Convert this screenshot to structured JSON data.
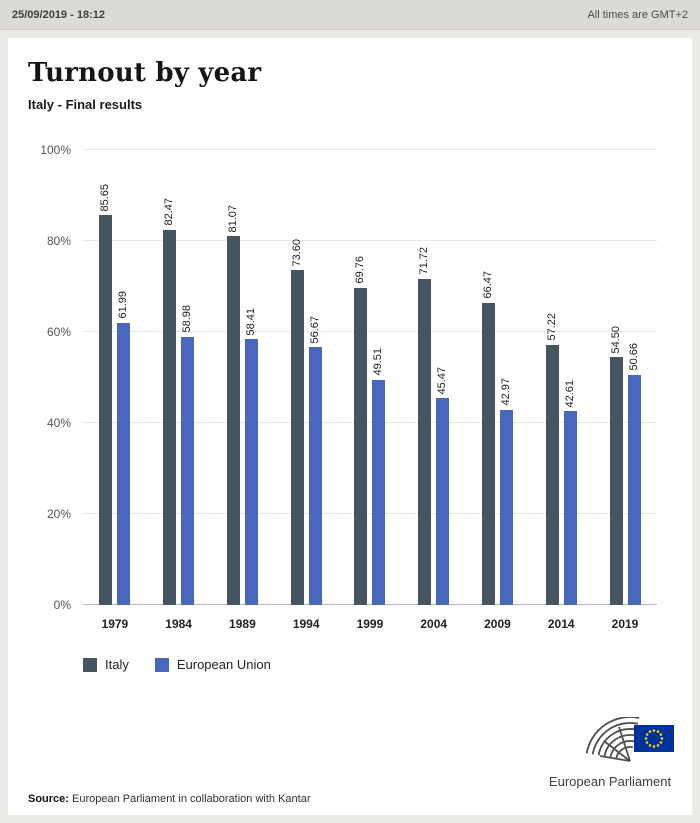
{
  "header": {
    "timestamp": "25/09/2019 - 18:12",
    "timezone_note": "All times are GMT+2"
  },
  "title": "Turnout by year",
  "subtitle": "Italy - Final results",
  "chart_data": {
    "type": "bar",
    "categories": [
      "1979",
      "1984",
      "1989",
      "1994",
      "1999",
      "2004",
      "2009",
      "2014",
      "2019"
    ],
    "series": [
      {
        "name": "Italy",
        "color": "#47555e",
        "values": [
          85.65,
          82.47,
          81.07,
          73.6,
          69.76,
          71.72,
          66.47,
          57.22,
          54.5
        ]
      },
      {
        "name": "European Union",
        "color": "#4a67c0",
        "values": [
          61.99,
          58.98,
          58.41,
          56.67,
          49.51,
          45.47,
          42.97,
          42.61,
          50.66
        ]
      }
    ],
    "ylim": [
      0,
      100
    ],
    "yticks": [
      "0%",
      "20%",
      "40%",
      "60%",
      "80%",
      "100%"
    ],
    "grid": true,
    "legend_position": "bottom",
    "value_labels": "rotated-90-above-bars",
    "title": "Turnout by year",
    "subtitle": "Italy - Final results",
    "xlabel": "",
    "ylabel": ""
  },
  "footer": {
    "source_label": "Source:",
    "source_text": " European Parliament in collaboration with Kantar",
    "logo_text": "European Parliament"
  },
  "colors": {
    "italy_bar": "#47555e",
    "eu_bar": "#4a67c0",
    "flag_blue": "#003399",
    "flag_stars": "#ffcc00"
  }
}
